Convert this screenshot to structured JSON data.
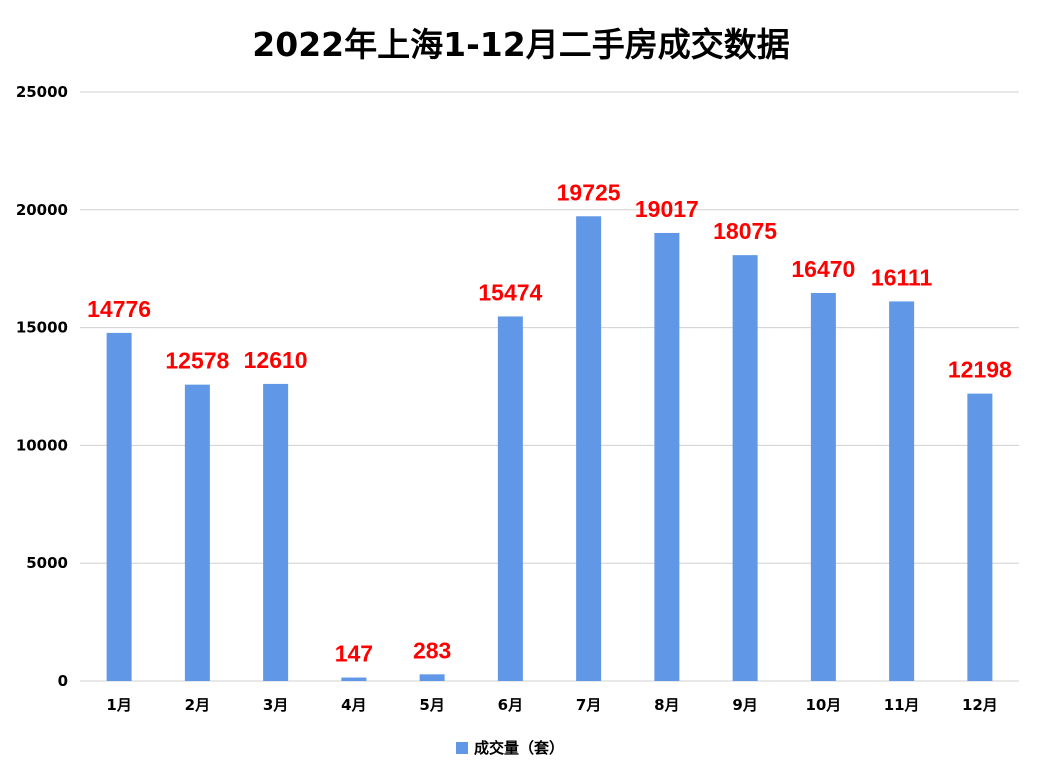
{
  "chart_data": {
    "type": "bar",
    "title": "2022年上海1-12月二手房成交数据",
    "categories": [
      "1月",
      "2月",
      "3月",
      "4月",
      "5月",
      "6月",
      "7月",
      "8月",
      "9月",
      "10月",
      "11月",
      "12月"
    ],
    "series": [
      {
        "name": "成交量（套）",
        "values": [
          14776,
          12578,
          12610,
          147,
          283,
          15474,
          19725,
          19017,
          18075,
          16470,
          16111,
          12198
        ],
        "color": "#6097E6"
      }
    ],
    "ylim": [
      0,
      25000
    ],
    "yticks": [
      0,
      5000,
      10000,
      15000,
      20000,
      25000
    ],
    "data_label_color": "#FF0000",
    "gridlines": true,
    "legend_position": "bottom"
  }
}
